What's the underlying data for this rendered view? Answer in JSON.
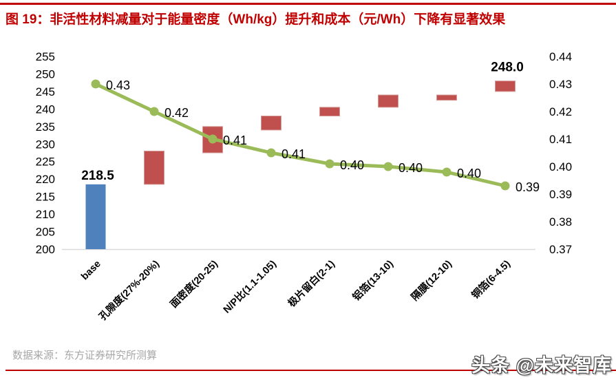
{
  "title": "图 19：非活性材料减量对于能量密度（Wh/kg）提升和成本（元/Wh）下降有显著效果",
  "footer": {
    "source": "数据来源：东方证券研究所测算",
    "watermark": "头条 @未来智库"
  },
  "colors": {
    "title_red": "#c00000",
    "bar_base_blue": "#4f81bd",
    "bar_delta_red": "#c0504d",
    "bar_delta_edge": "#d59a98",
    "line_green": "#9bbb59",
    "axis_line_gray": "#d9d9d9",
    "source_gray": "#a6a6a6"
  },
  "chart_data": {
    "type": "bar",
    "subtype": "waterfall-with-line-combo",
    "categories": [
      "base",
      "孔隙度(27%-20%)",
      "面密度(20-25)",
      "N/P比(1.1-1.05)",
      "极片留白(2-1)",
      "铝箔(13-10)",
      "隔膜(12-10)",
      "铜箔(6-4.5)"
    ],
    "left_axis": {
      "min": 200,
      "max": 255,
      "step": 5,
      "ticks": [
        "255",
        "250",
        "245",
        "240",
        "235",
        "230",
        "225",
        "220",
        "215",
        "210",
        "205",
        "200"
      ]
    },
    "right_axis": {
      "min": 0.37,
      "max": 0.44,
      "step": 0.01,
      "ticks": [
        "0.44",
        "0.43",
        "0.42",
        "0.41",
        "0.40",
        "0.39",
        "0.38",
        "0.37"
      ]
    },
    "grid": "off",
    "legend": "none",
    "series": [
      {
        "name": "能量密度（Wh/kg）",
        "type": "bar",
        "axis": "left",
        "bars": [
          {
            "category": "base",
            "from": 200.0,
            "to": 218.5,
            "role": "base",
            "label": "218.5"
          },
          {
            "category": "孔隙度(27%-20%)",
            "from": 218.5,
            "to": 228.0,
            "role": "delta",
            "label": ""
          },
          {
            "category": "面密度(20-25)",
            "from": 227.5,
            "to": 235.0,
            "role": "delta",
            "label": ""
          },
          {
            "category": "N/P比(1.1-1.05)",
            "from": 234.0,
            "to": 238.0,
            "role": "delta",
            "label": ""
          },
          {
            "category": "极片留白(2-1)",
            "from": 238.0,
            "to": 240.5,
            "role": "delta",
            "label": ""
          },
          {
            "category": "铝箔(13-10)",
            "from": 240.5,
            "to": 244.0,
            "role": "delta",
            "label": ""
          },
          {
            "category": "隔膜(12-10)",
            "from": 242.5,
            "to": 244.0,
            "role": "delta",
            "label": ""
          },
          {
            "category": "铜箔(6-4.5)",
            "from": 245.0,
            "to": 248.0,
            "role": "delta",
            "label": "248.0"
          }
        ]
      },
      {
        "name": "成本（元/Wh）",
        "type": "line",
        "axis": "right",
        "values": [
          0.43,
          0.42,
          0.41,
          0.405,
          0.401,
          0.4,
          0.398,
          0.393
        ],
        "labels": [
          "0.43",
          "0.42",
          "0.41",
          "0.41",
          "0.40",
          "0.40",
          "0.40",
          "0.39"
        ]
      }
    ]
  }
}
